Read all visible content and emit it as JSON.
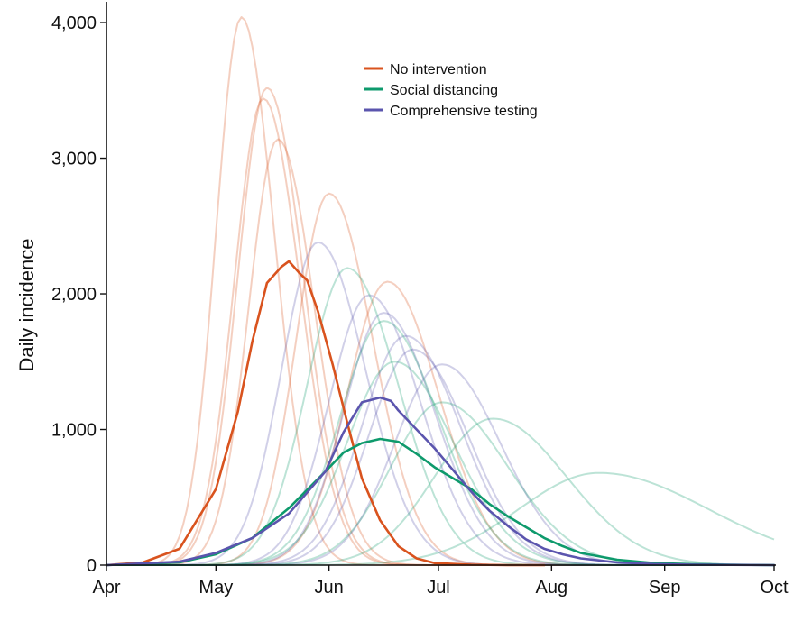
{
  "chart_data": {
    "type": "line",
    "title": "",
    "xlabel": "",
    "ylabel": "Daily incidence",
    "x_axis": {
      "ticks": [
        "Apr",
        "May",
        "Jun",
        "Jul",
        "Aug",
        "Sep",
        "Oct"
      ],
      "range_days": [
        0,
        183
      ]
    },
    "y_axis": {
      "ticks": [
        0,
        1000,
        2000,
        3000,
        4000
      ],
      "tick_labels": [
        "0",
        "1,000",
        "2,000",
        "3,000",
        "4,000"
      ],
      "range": [
        0,
        4100
      ]
    },
    "grid": false,
    "legend": {
      "placement": "top-center",
      "entries": [
        "No intervention",
        "Social distancing",
        "Comprehensive testing"
      ]
    },
    "colors": {
      "no_intervention": "#D9531E",
      "social_distancing": "#0E9A6C",
      "comprehensive_testing": "#5B55AE"
    },
    "series": [
      {
        "name": "No intervention",
        "role": "median",
        "group": "no_intervention",
        "x": [
          0,
          10,
          20,
          30,
          36,
          40,
          44,
          48,
          50,
          53,
          55,
          58,
          62,
          66,
          70,
          75,
          80,
          85,
          90,
          100,
          110,
          120
        ],
        "y": [
          0,
          20,
          120,
          560,
          1130,
          1650,
          2080,
          2200,
          2240,
          2150,
          2100,
          1870,
          1480,
          1050,
          640,
          330,
          140,
          50,
          15,
          3,
          0,
          0
        ]
      },
      {
        "name": "Social distancing",
        "role": "median",
        "group": "social_distancing",
        "x": [
          0,
          20,
          30,
          40,
          50,
          60,
          65,
          70,
          75,
          80,
          85,
          90,
          95,
          100,
          105,
          110,
          115,
          120,
          125,
          130,
          140,
          150,
          160,
          170,
          183
        ],
        "y": [
          0,
          20,
          80,
          200,
          420,
          690,
          830,
          900,
          930,
          910,
          820,
          720,
          640,
          560,
          450,
          360,
          280,
          200,
          140,
          90,
          40,
          15,
          8,
          3,
          0
        ]
      },
      {
        "name": "Comprehensive testing",
        "role": "median",
        "group": "comprehensive_testing",
        "x": [
          0,
          20,
          30,
          40,
          50,
          60,
          65,
          70,
          75,
          78,
          80,
          85,
          90,
          95,
          100,
          105,
          110,
          115,
          120,
          125,
          130,
          140,
          150,
          160,
          183
        ],
        "y": [
          0,
          25,
          90,
          200,
          380,
          690,
          980,
          1200,
          1235,
          1210,
          1140,
          1000,
          860,
          700,
          540,
          400,
          290,
          190,
          120,
          80,
          50,
          20,
          8,
          3,
          0
        ]
      },
      {
        "role": "simulation",
        "group": "no_intervention",
        "peak_day": 37,
        "peak": 4040,
        "rise": 7,
        "fall": 9
      },
      {
        "role": "simulation",
        "group": "no_intervention",
        "peak_day": 44,
        "peak": 3520,
        "rise": 8,
        "fall": 10
      },
      {
        "role": "simulation",
        "group": "no_intervention",
        "peak_day": 43,
        "peak": 3440,
        "rise": 8,
        "fall": 10
      },
      {
        "role": "simulation",
        "group": "no_intervention",
        "peak_day": 47,
        "peak": 3140,
        "rise": 8,
        "fall": 10
      },
      {
        "role": "simulation",
        "group": "no_intervention",
        "peak_day": 61,
        "peak": 2740,
        "rise": 9,
        "fall": 12
      },
      {
        "role": "simulation",
        "group": "no_intervention",
        "peak_day": 77,
        "peak": 2090,
        "rise": 11,
        "fall": 14
      },
      {
        "role": "simulation",
        "group": "comprehensive_testing",
        "peak_day": 58,
        "peak": 2380,
        "rise": 10,
        "fall": 13
      },
      {
        "role": "simulation",
        "group": "comprehensive_testing",
        "peak_day": 72,
        "peak": 1990,
        "rise": 11,
        "fall": 14
      },
      {
        "role": "simulation",
        "group": "comprehensive_testing",
        "peak_day": 76,
        "peak": 1860,
        "rise": 11,
        "fall": 14
      },
      {
        "role": "simulation",
        "group": "comprehensive_testing",
        "peak_day": 82,
        "peak": 1690,
        "rise": 12,
        "fall": 15
      },
      {
        "role": "simulation",
        "group": "comprehensive_testing",
        "peak_day": 84,
        "peak": 1590,
        "rise": 12,
        "fall": 15
      },
      {
        "role": "simulation",
        "group": "comprehensive_testing",
        "peak_day": 92,
        "peak": 1480,
        "rise": 13,
        "fall": 16
      },
      {
        "role": "simulation",
        "group": "social_distancing",
        "peak_day": 66,
        "peak": 2190,
        "rise": 11,
        "fall": 14
      },
      {
        "role": "simulation",
        "group": "social_distancing",
        "peak_day": 76,
        "peak": 1800,
        "rise": 12,
        "fall": 15
      },
      {
        "role": "simulation",
        "group": "social_distancing",
        "peak_day": 79,
        "peak": 1500,
        "rise": 13,
        "fall": 16
      },
      {
        "role": "simulation",
        "group": "social_distancing",
        "peak_day": 92,
        "peak": 1200,
        "rise": 14,
        "fall": 18
      },
      {
        "role": "simulation",
        "group": "social_distancing",
        "peak_day": 106,
        "peak": 1080,
        "rise": 16,
        "fall": 20
      },
      {
        "role": "simulation",
        "group": "social_distancing",
        "peak_day": 135,
        "peak": 680,
        "rise": 22,
        "fall": 30
      }
    ]
  }
}
